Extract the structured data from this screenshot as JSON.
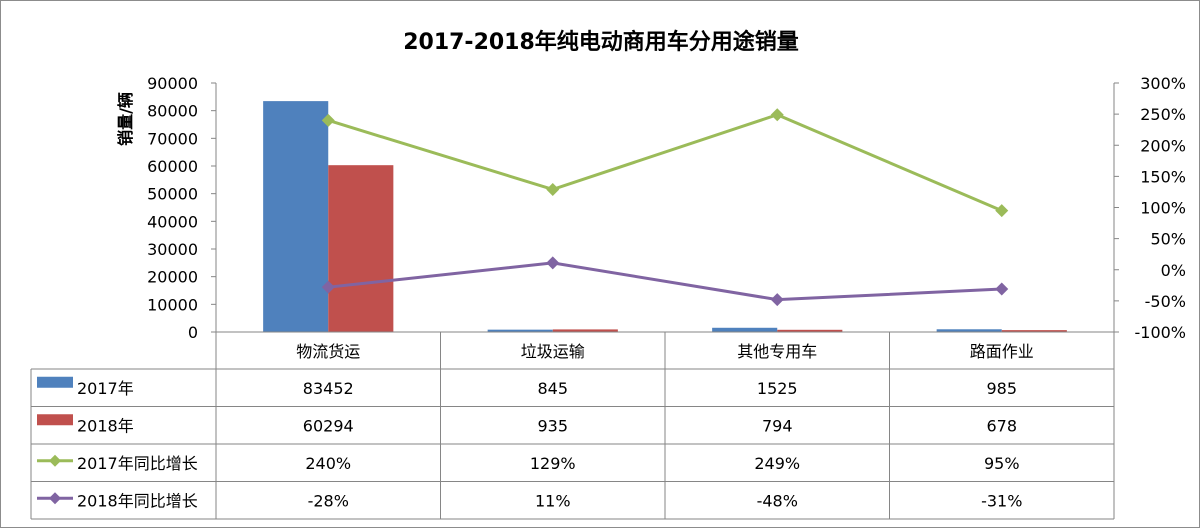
{
  "chart_data": {
    "type": "bar",
    "title": "2017-2018年纯电动商用车分用途销量",
    "ylabel": "销量/辆",
    "xlabel": "",
    "categories": [
      "物流货运",
      "垃圾运输",
      "其他专用车",
      "路面作业"
    ],
    "ylim": [
      0,
      90000
    ],
    "y_ticks": [
      "90000",
      "80000",
      "70000",
      "60000",
      "50000",
      "40000",
      "30000",
      "20000",
      "10000",
      "0"
    ],
    "y2lim": [
      -100,
      300
    ],
    "y2_ticks": [
      "300%",
      "250%",
      "200%",
      "150%",
      "100%",
      "50%",
      "0%",
      "-50%",
      "-100%"
    ],
    "grid": false,
    "legend": "data-table",
    "series": [
      {
        "name": "2017年",
        "kind": "bar",
        "axis": "left",
        "color": "#4f81bd",
        "values": [
          83452,
          845,
          1525,
          985
        ],
        "labels": [
          "83452",
          "845",
          "1525",
          "985"
        ]
      },
      {
        "name": "2018年",
        "kind": "bar",
        "axis": "left",
        "color": "#c0504d",
        "values": [
          60294,
          935,
          794,
          678
        ],
        "labels": [
          "60294",
          "935",
          "794",
          "678"
        ]
      },
      {
        "name": "2017年同比增长",
        "kind": "line",
        "axis": "right",
        "color": "#9bbb59",
        "values": [
          240,
          129,
          249,
          95
        ],
        "labels": [
          "240%",
          "129%",
          "249%",
          "95%"
        ]
      },
      {
        "name": "2018年同比增长",
        "kind": "line",
        "axis": "right",
        "color": "#8064a2",
        "values": [
          -28,
          11,
          -48,
          -31
        ],
        "labels": [
          "-28%",
          "11%",
          "-48%",
          "-31%"
        ]
      }
    ]
  }
}
